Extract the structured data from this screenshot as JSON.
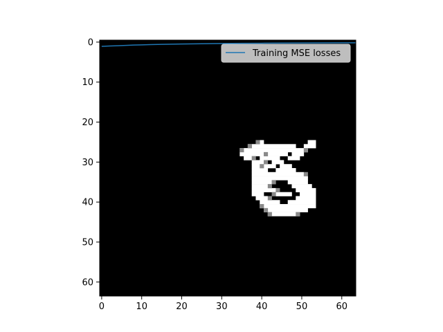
{
  "chart_data": {
    "type": "heatmap",
    "title": "",
    "xlabel": "",
    "ylabel": "",
    "xlim": [
      -0.5,
      63.5
    ],
    "ylim": [
      63.5,
      -0.5
    ],
    "y_axis_inverted": true,
    "grid": false,
    "x_ticks": [
      "0",
      "10",
      "20",
      "30",
      "40",
      "50",
      "60"
    ],
    "y_ticks": [
      "0",
      "10",
      "20",
      "30",
      "40",
      "50",
      "60"
    ],
    "image": {
      "colormap": "gray",
      "background_value": 0,
      "shape": [
        64,
        64
      ],
      "content": "white handwritten glyph (character-like shape) on black background",
      "rows": {
        "25": [
          [
            39,
            40
          ],
          [
            52,
            53
          ]
        ],
        "26": [
          [
            37,
            48
          ],
          [
            51,
            53
          ]
        ],
        "27": [
          [
            35,
            51
          ]
        ],
        "28": [
          [
            35,
            40
          ],
          [
            42,
            46
          ],
          [
            48,
            50
          ]
        ],
        "29": [
          [
            36,
            37
          ],
          [
            40,
            44
          ],
          [
            47,
            49
          ]
        ],
        "30": [
          [
            38,
            40
          ],
          [
            43,
            45
          ]
        ],
        "31": [
          [
            38,
            39
          ],
          [
            41,
            43
          ],
          [
            45,
            47
          ]
        ],
        "32": [
          [
            38,
            41
          ],
          [
            44,
            48
          ]
        ],
        "33": [
          [
            38,
            50
          ]
        ],
        "34": [
          [
            38,
            51
          ]
        ],
        "35": [
          [
            38,
            42
          ],
          [
            47,
            51
          ]
        ],
        "36": [
          [
            38,
            41
          ],
          [
            48,
            52
          ]
        ],
        "37": [
          [
            38,
            43
          ],
          [
            49,
            53
          ]
        ],
        "38": [
          [
            38,
            40
          ],
          [
            44,
            47
          ],
          [
            50,
            53
          ]
        ],
        "39": [
          [
            39,
            41
          ],
          [
            49,
            53
          ]
        ],
        "40": [
          [
            40,
            44
          ],
          [
            47,
            53
          ]
        ],
        "41": [
          [
            40,
            53
          ]
        ],
        "42": [
          [
            41,
            51
          ]
        ],
        "43": [
          [
            42,
            49
          ]
        ]
      },
      "gray_pixels": [
        [
          25,
          39
        ],
        [
          26,
          37
        ],
        [
          27,
          35
        ],
        [
          28,
          41
        ],
        [
          29,
          38
        ],
        [
          30,
          41
        ],
        [
          31,
          40
        ],
        [
          35,
          43
        ],
        [
          36,
          42
        ],
        [
          38,
          43
        ],
        [
          39,
          42
        ],
        [
          41,
          40
        ],
        [
          42,
          41
        ],
        [
          43,
          42
        ],
        [
          43,
          49
        ],
        [
          27,
          51
        ],
        [
          33,
          51
        ],
        [
          37,
          44
        ]
      ]
    },
    "series": [
      {
        "name": "Training MSE losses",
        "color": "#1f77b4",
        "x": [
          0,
          2,
          4,
          6,
          8,
          10,
          12,
          15,
          20,
          25,
          30,
          35,
          40,
          45,
          50,
          55,
          60,
          63.5
        ],
        "values": [
          1.05,
          0.98,
          0.9,
          0.82,
          0.74,
          0.68,
          0.62,
          0.55,
          0.47,
          0.4,
          0.34,
          0.3,
          0.27,
          0.24,
          0.22,
          0.2,
          0.18,
          0.17
        ]
      }
    ],
    "legend": {
      "position": "top-right",
      "entries": [
        "Training MSE losses"
      ]
    }
  }
}
